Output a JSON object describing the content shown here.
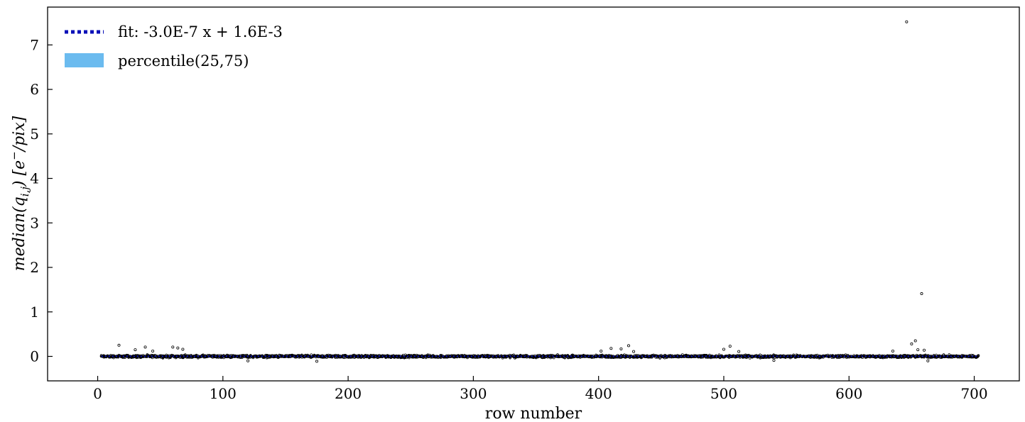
{
  "chart_data": {
    "type": "scatter",
    "xlabel": "row number",
    "ylabel": "median(q_{i,j}) [e^-/pix]",
    "ylabel_parts": {
      "main": "median(q",
      "sub": "i,j",
      "mid": ") [e",
      "sup": "−",
      "end": "/pix]"
    },
    "xlim": [
      -40,
      736
    ],
    "ylim": [
      -0.55,
      7.85
    ],
    "xticks": [
      0,
      100,
      200,
      300,
      400,
      500,
      600,
      700
    ],
    "yticks": [
      0,
      1,
      2,
      3,
      4,
      5,
      6,
      7
    ],
    "grid": false,
    "legend": {
      "placement": "top-left",
      "entries": [
        {
          "label": "fit: -3.0E-7 x + 1.6E-3",
          "kind": "dotted-line",
          "color": "#0a10b8"
        },
        {
          "label": "percentile(25,75)",
          "kind": "patch",
          "color": "#6bbbef"
        }
      ]
    },
    "fit": {
      "slope": -3e-07,
      "intercept": 0.0016,
      "x_range": [
        3,
        703
      ],
      "color": "#0a10b8"
    },
    "band": {
      "x_range": [
        3,
        703
      ],
      "lower": -0.01,
      "upper": 0.01,
      "color": "#6bbbef"
    },
    "series": [
      {
        "x_range": [
          3,
          703
        ],
        "baseline": 0.0,
        "scatter_spread": 0.045,
        "marker_color": "#000000",
        "outliers": [
          {
            "x": 646,
            "y": 7.52
          },
          {
            "x": 658,
            "y": 1.41
          },
          {
            "x": 653,
            "y": 0.35
          },
          {
            "x": 650,
            "y": 0.28
          },
          {
            "x": 17,
            "y": 0.25
          },
          {
            "x": 424,
            "y": 0.24
          },
          {
            "x": 505,
            "y": 0.23
          },
          {
            "x": 60,
            "y": 0.21
          },
          {
            "x": 38,
            "y": 0.21
          },
          {
            "x": 64,
            "y": 0.19
          },
          {
            "x": 410,
            "y": 0.18
          },
          {
            "x": 418,
            "y": 0.17
          },
          {
            "x": 500,
            "y": 0.16
          },
          {
            "x": 68,
            "y": 0.16
          },
          {
            "x": 30,
            "y": 0.15
          },
          {
            "x": 655,
            "y": 0.15
          },
          {
            "x": 660,
            "y": 0.14
          },
          {
            "x": 44,
            "y": 0.12
          },
          {
            "x": 402,
            "y": 0.12
          },
          {
            "x": 512,
            "y": 0.11
          },
          {
            "x": 635,
            "y": 0.12
          },
          {
            "x": 428,
            "y": 0.11
          },
          {
            "x": 120,
            "y": -0.1
          },
          {
            "x": 175,
            "y": -0.11
          },
          {
            "x": 663,
            "y": -0.1
          },
          {
            "x": 540,
            "y": -0.09
          }
        ]
      }
    ]
  }
}
